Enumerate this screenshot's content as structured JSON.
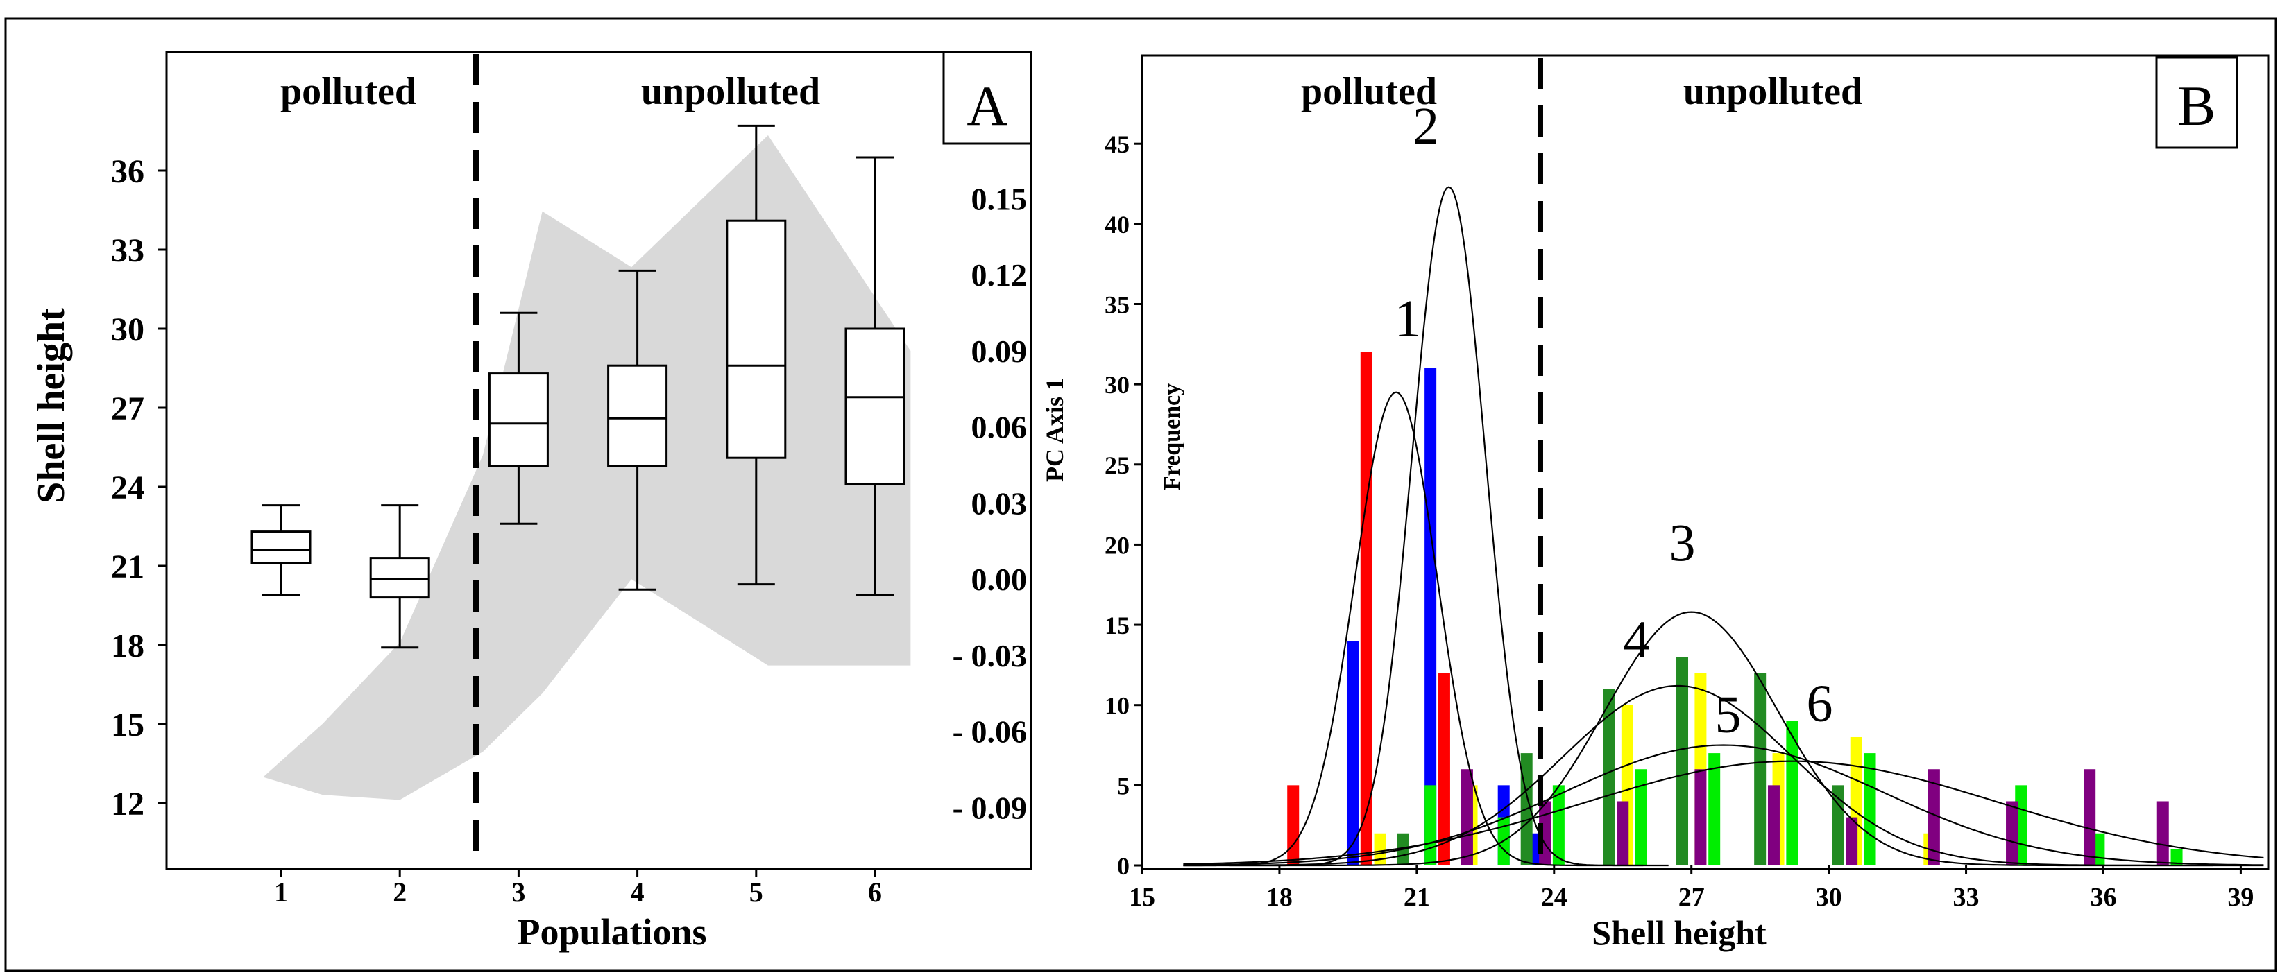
{
  "chart_data": [
    {
      "panel": "A",
      "type": "boxplot",
      "panel_label": "A",
      "xlabel": "Populations",
      "ylabel": "Shell height",
      "y2label": "PC Axis 1",
      "region_labels": [
        "polluted",
        "unpolluted"
      ],
      "categories": [
        "1",
        "2",
        "3",
        "4",
        "5",
        "6"
      ],
      "ylim": [
        9.5,
        40.5
      ],
      "yticks": [
        "12",
        "15",
        "18",
        "21",
        "24",
        "27",
        "30",
        "33",
        "36"
      ],
      "y2lim": [
        -0.1142,
        0.2078
      ],
      "y2ticks": [
        "0.15",
        "0.12",
        "0.09",
        "0.06",
        "0.03",
        "0.00",
        "- 0.03",
        "- 0.06",
        "- 0.09"
      ],
      "boxes": [
        {
          "population": "1",
          "min": 19.9,
          "q1": 21.1,
          "median": 21.6,
          "q3": 22.3,
          "max": 23.3
        },
        {
          "population": "2",
          "min": 17.9,
          "q1": 19.8,
          "median": 20.5,
          "q3": 21.3,
          "max": 23.3
        },
        {
          "population": "3",
          "min": 22.6,
          "q1": 24.8,
          "median": 26.4,
          "q3": 28.3,
          "max": 30.6
        },
        {
          "population": "4",
          "min": 20.1,
          "q1": 24.8,
          "median": 26.6,
          "q3": 28.6,
          "max": 32.2
        },
        {
          "population": "5",
          "min": 20.3,
          "q1": 25.1,
          "median": 28.6,
          "q3": 34.1,
          "max": 37.7
        },
        {
          "population": "6",
          "min": 19.9,
          "q1": 24.1,
          "median": 27.4,
          "q3": 30.0,
          "max": 36.5
        }
      ],
      "pc_envelope": {
        "x": [
          0.85,
          1.35,
          2.0,
          2.7,
          3.2,
          3.95,
          5.1,
          6.3
        ],
        "upper": [
          -0.078,
          -0.057,
          -0.025,
          0.049,
          0.145,
          0.123,
          0.175,
          0.09
        ],
        "lower": [
          -0.078,
          -0.085,
          -0.087,
          -0.068,
          -0.045,
          0.0,
          -0.034,
          -0.034
        ]
      },
      "divider_x": 2.7
    },
    {
      "panel": "B",
      "type": "histogram",
      "panel_label": "B",
      "xlabel": "Shell height",
      "ylabel": "Frequency",
      "region_labels": [
        "polluted",
        "unpolluted"
      ],
      "xlim": [
        15,
        39.6
      ],
      "ylim": [
        0,
        50.5
      ],
      "xticks": [
        "15",
        "18",
        "21",
        "24",
        "27",
        "30",
        "33",
        "36",
        "39"
      ],
      "yticks": [
        "0",
        "5",
        "10",
        "15",
        "20",
        "25",
        "30",
        "35",
        "40",
        "45"
      ],
      "divider_x": 23.7,
      "series": [
        {
          "name": "1",
          "color": "#ff0000",
          "bins": [
            [
              18.3,
              5
            ],
            [
              19.9,
              32
            ],
            [
              21.6,
              12
            ],
            [
              23.5,
              1
            ]
          ]
        },
        {
          "name": "2",
          "color": "#0000ff",
          "bins": [
            [
              19.6,
              14
            ],
            [
              21.3,
              31
            ],
            [
              22.9,
              5
            ],
            [
              23.6,
              2
            ]
          ]
        },
        {
          "name": "3",
          "color": "#228b22",
          "bins": [
            [
              20.7,
              2
            ],
            [
              23.4,
              7
            ],
            [
              25.2,
              11
            ],
            [
              26.8,
              13
            ],
            [
              28.5,
              12
            ],
            [
              30.2,
              5
            ]
          ]
        },
        {
          "name": "4",
          "color": "#ffff00",
          "bins": [
            [
              20.2,
              2
            ],
            [
              22.2,
              5
            ],
            [
              25.6,
              10
            ],
            [
              27.2,
              12
            ],
            [
              28.9,
              7
            ],
            [
              30.6,
              8
            ],
            [
              32.2,
              2
            ]
          ]
        },
        {
          "name": "5",
          "color": "#00ee00",
          "bins": [
            [
              21.3,
              5
            ],
            [
              22.9,
              3
            ],
            [
              24.1,
              5
            ],
            [
              25.9,
              6
            ],
            [
              27.5,
              7
            ],
            [
              29.2,
              9
            ],
            [
              30.9,
              7
            ],
            [
              34.2,
              5
            ],
            [
              35.9,
              2
            ],
            [
              37.6,
              1
            ]
          ]
        },
        {
          "name": "6",
          "color": "#800080",
          "bins": [
            [
              22.1,
              6
            ],
            [
              23.8,
              4
            ],
            [
              25.5,
              4
            ],
            [
              27.2,
              6
            ],
            [
              28.8,
              5
            ],
            [
              30.5,
              3
            ],
            [
              32.3,
              6
            ],
            [
              34.0,
              4
            ],
            [
              35.7,
              6
            ],
            [
              37.3,
              4
            ]
          ]
        }
      ],
      "curves": [
        {
          "name": "1",
          "mean": 20.55,
          "peak": 29.5,
          "sd": 0.9
        },
        {
          "name": "2",
          "mean": 21.7,
          "peak": 42.3,
          "sd": 0.8
        },
        {
          "name": "3",
          "mean": 27.0,
          "peak": 15.8,
          "sd": 1.9
        },
        {
          "name": "4",
          "mean": 26.7,
          "peak": 11.2,
          "sd": 2.5
        },
        {
          "name": "5",
          "mean": 27.7,
          "peak": 7.5,
          "sd": 3.5
        },
        {
          "name": "6",
          "mean": 29.2,
          "peak": 6.5,
          "sd": 4.5
        }
      ],
      "curve_labels": [
        {
          "text": "1",
          "x": 20.8,
          "y": 33
        },
        {
          "text": "2",
          "x": 21.2,
          "y": 45
        },
        {
          "text": "3",
          "x": 26.8,
          "y": 19
        },
        {
          "text": "4",
          "x": 25.8,
          "y": 13
        },
        {
          "text": "5",
          "x": 27.8,
          "y": 8.3
        },
        {
          "text": "6",
          "x": 29.8,
          "y": 9
        }
      ]
    }
  ]
}
